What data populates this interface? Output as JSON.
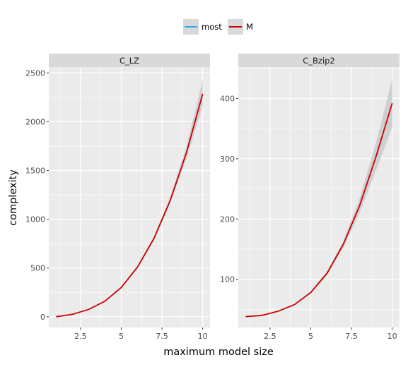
{
  "legend": {
    "placement": "top-center",
    "entries": [
      {
        "name": "most",
        "color": "#29abe2"
      },
      {
        "name": "M",
        "color": "#cc0000"
      }
    ]
  },
  "ylabel": "complexity",
  "xlabel": "maximum model size",
  "colors": {
    "panel_bg": "#ebebeb",
    "strip_bg": "#d9d9d9",
    "grid": "#ffffff",
    "ribbon": "#cccccc"
  },
  "chart_data": [
    {
      "type": "line",
      "facet_label": "C_LZ",
      "x": [
        1,
        2,
        3,
        4,
        5,
        6,
        7,
        8,
        9,
        10
      ],
      "xlim": [
        0.55,
        10.45
      ],
      "ylim": [
        -110,
        2560
      ],
      "xticks": [
        2.5,
        5,
        7.5,
        10
      ],
      "xtick_labels": [
        "2.5",
        "5",
        "7.5",
        "10"
      ],
      "yticks": [
        0,
        500,
        1000,
        1500,
        2000,
        2500
      ],
      "ytick_labels": [
        "0",
        "500",
        "1000",
        "1500",
        "2000",
        "2500"
      ],
      "grid": true,
      "series": [
        {
          "name": "M",
          "color": "#cc0000",
          "values": [
            0,
            25,
            75,
            160,
            300,
            510,
            800,
            1190,
            1680,
            2285
          ],
          "lower": [
            0,
            23,
            72,
            155,
            292,
            498,
            780,
            1160,
            1620,
            2160
          ],
          "upper": [
            0,
            27,
            78,
            165,
            308,
            522,
            820,
            1220,
            1740,
            2430
          ]
        }
      ]
    },
    {
      "type": "line",
      "facet_label": "C_Bzip2",
      "x": [
        1,
        2,
        3,
        4,
        5,
        6,
        7,
        8,
        9,
        10
      ],
      "xlim": [
        0.55,
        10.45
      ],
      "ylim": [
        20,
        452
      ],
      "xticks": [
        2.5,
        5,
        7.5,
        10
      ],
      "xtick_labels": [
        "2.5",
        "5",
        "7.5",
        "10"
      ],
      "yticks": [
        100,
        200,
        300,
        400
      ],
      "ytick_labels": [
        "100",
        "200",
        "300",
        "400"
      ],
      "grid": true,
      "series": [
        {
          "name": "M",
          "color": "#cc0000",
          "values": [
            38,
            40,
            47,
            58,
            78,
            110,
            158,
            222,
            303,
            392
          ],
          "lower": [
            38,
            40,
            46,
            57,
            76,
            107,
            153,
            210,
            280,
            352
          ],
          "upper": [
            38,
            40,
            48,
            59,
            80,
            113,
            163,
            234,
            326,
            432
          ]
        }
      ]
    }
  ]
}
